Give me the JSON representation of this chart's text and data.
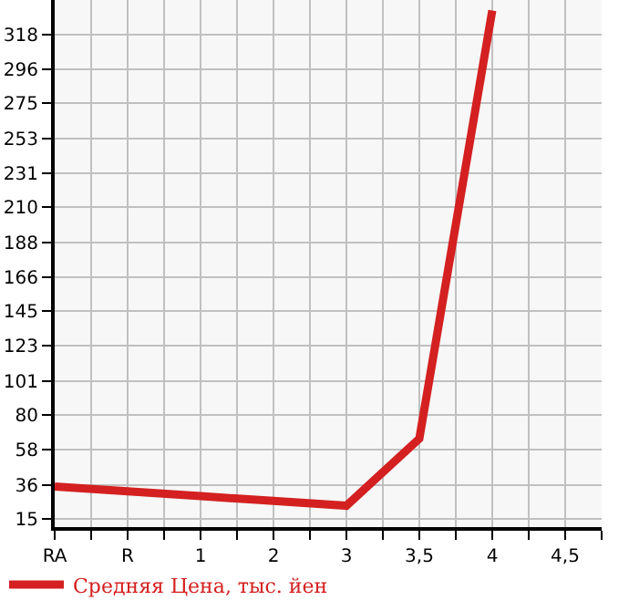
{
  "chart_data": {
    "type": "line",
    "categories": [
      "RA",
      "R",
      "1",
      "2",
      "3",
      "3,5",
      "4",
      "4,5"
    ],
    "series": [
      {
        "name": "Средняя Цена, тыс. йен",
        "color": "#d42020",
        "values": [
          35,
          32,
          29,
          26,
          23,
          65,
          333,
          null
        ]
      }
    ],
    "ylim": [
      9.6,
      339.6
    ],
    "yticks": [
      15,
      36,
      58,
      80,
      101,
      123,
      145,
      166,
      188,
      210,
      231,
      253,
      275,
      296,
      318
    ],
    "grid": true,
    "legend": "bottom",
    "marker": "none",
    "line_style": "solid"
  }
}
